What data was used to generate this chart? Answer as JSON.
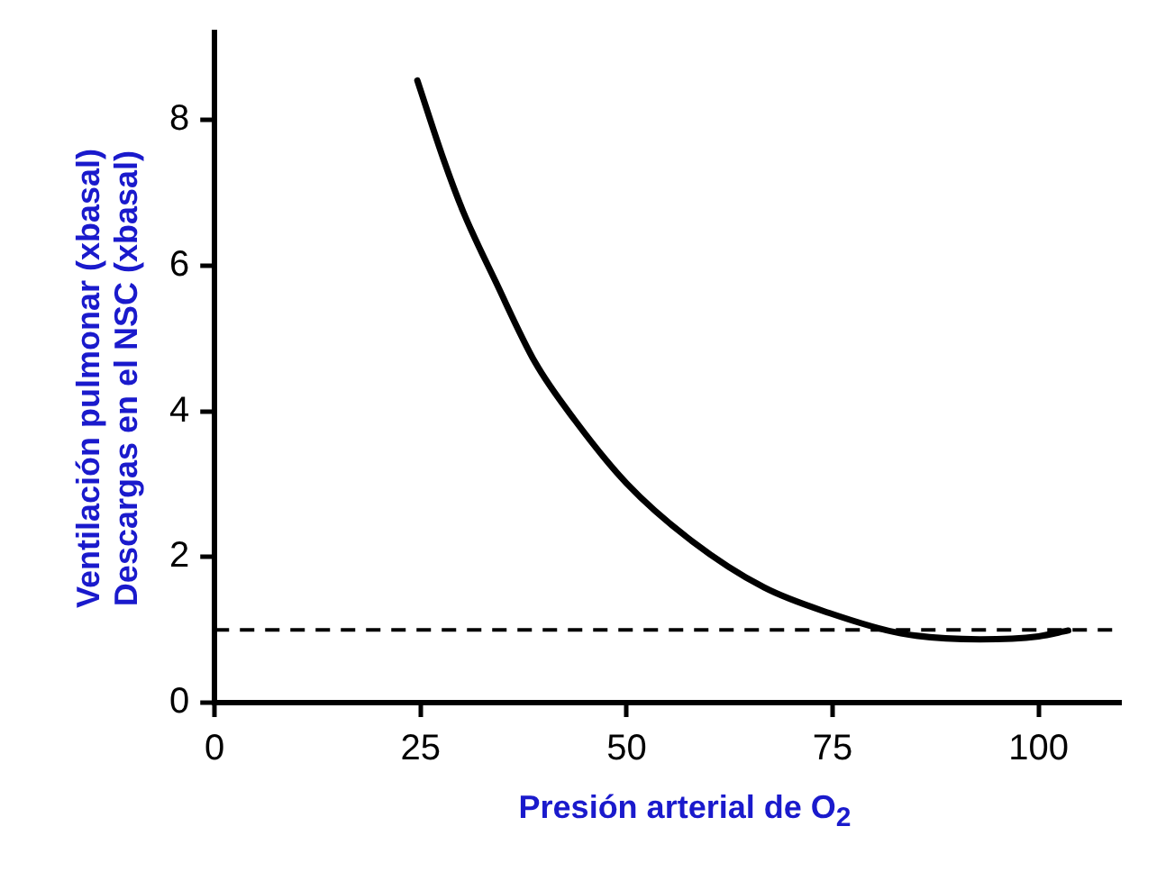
{
  "chart_data": {
    "type": "line",
    "xlabel": "Presión arterial de O$_{2}$",
    "ylabel": "Ventilación pulmonar (xbasal)\nDescargas en el NSC (xbasal)",
    "series": [
      {
        "color": "#000000",
        "x": [
          24.6,
          27.8,
          30.2,
          34.1,
          38.9,
          43.7,
          50.0,
          57.9,
          66.7,
          74.6,
          83.3,
          92.9,
          100,
          103.6
        ],
        "values": [
          8.54,
          7.45,
          6.73,
          5.78,
          4.67,
          3.88,
          3.01,
          2.22,
          1.58,
          1.23,
          0.95,
          0.87,
          0.91,
          0.99
        ]
      }
    ],
    "xlim": [
      0,
      110
    ],
    "xticks": [
      0,
      25,
      50,
      75,
      100
    ],
    "ylim": [
      0,
      9.2
    ],
    "yticks": [
      0,
      2,
      4,
      6,
      8
    ],
    "ref_lines": [
      {
        "axis": "y",
        "value": 1,
        "line_style": "dashed",
        "color": "#000000"
      }
    ],
    "grid": false,
    "legend": false,
    "marker": "none",
    "line_style": "solid"
  }
}
